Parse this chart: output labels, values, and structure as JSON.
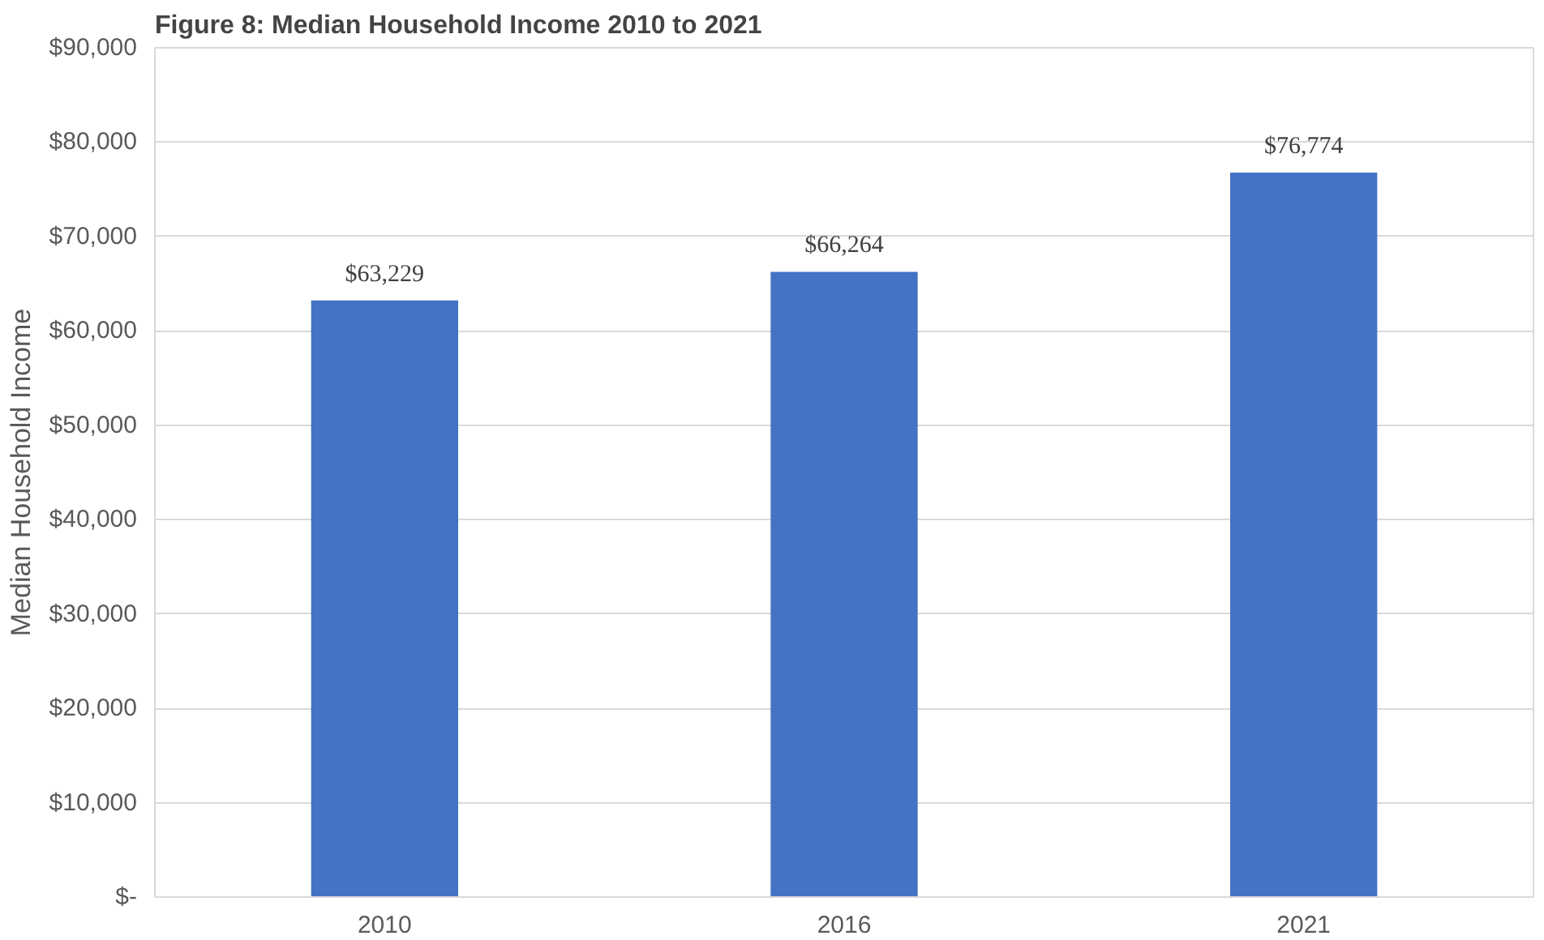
{
  "chart_data": {
    "type": "bar",
    "title": "Figure 8: Median Household Income 2010 to 2021",
    "ylabel": "Median Household Income",
    "categories": [
      "2010",
      "2016",
      "2021"
    ],
    "values": [
      63229,
      66264,
      76774
    ],
    "color": "#4472c4",
    "value_labels": [
      "$63,229",
      "$66,264",
      "$76,774"
    ],
    "ylim": [
      0,
      90000
    ],
    "yticks": [
      {
        "value": 0,
        "label": "$-"
      },
      {
        "value": 10000,
        "label": "$10,000"
      },
      {
        "value": 20000,
        "label": "$20,000"
      },
      {
        "value": 30000,
        "label": "$30,000"
      },
      {
        "value": 40000,
        "label": "$40,000"
      },
      {
        "value": 50000,
        "label": "$50,000"
      },
      {
        "value": 60000,
        "label": "$60,000"
      },
      {
        "value": 70000,
        "label": "$70,000"
      },
      {
        "value": 80000,
        "label": "$80,000"
      },
      {
        "value": 90000,
        "label": "$90,000"
      }
    ],
    "grid": "y"
  }
}
